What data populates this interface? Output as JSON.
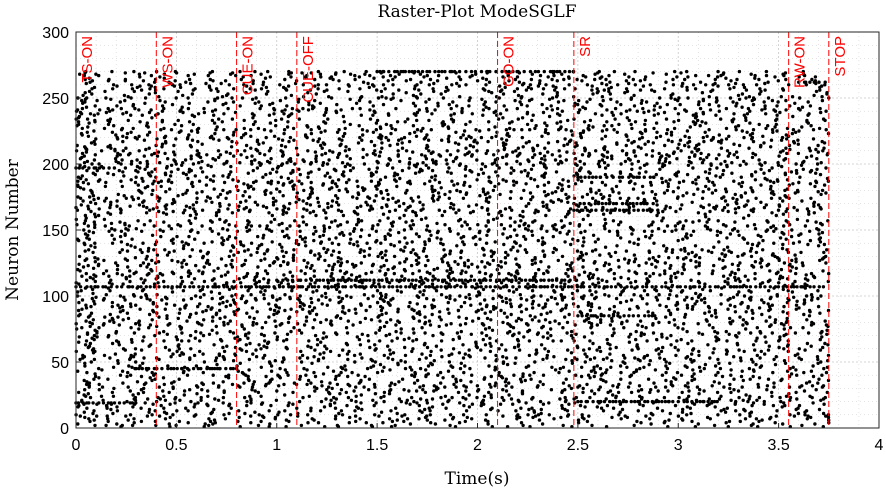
{
  "chart_data": {
    "type": "scatter",
    "title": "Raster-Plot ModeSGLF",
    "xlabel": "Time(s)",
    "ylabel": "Neuron Number",
    "xlim": [
      0,
      4
    ],
    "ylim": [
      0,
      300
    ],
    "xticks": [
      0,
      0.5,
      1,
      1.5,
      2,
      2.5,
      3,
      3.5,
      4
    ],
    "xtick_labels": [
      "0",
      "0.5",
      "1",
      "1.5",
      "2",
      "2.5",
      "3",
      "3.5",
      "4"
    ],
    "yticks": [
      0,
      50,
      100,
      150,
      200,
      250,
      300
    ],
    "ytick_labels": [
      "0",
      "50",
      "100",
      "150",
      "200",
      "250",
      "300"
    ],
    "grid": true,
    "grid_style": "dotted",
    "marker_color": "#000000",
    "event_color": "#ff0000",
    "events": [
      {
        "label": "TS-ON",
        "x": 0.0
      },
      {
        "label": "WS-ON",
        "x": 0.4
      },
      {
        "label": "CUE-ON",
        "x": 0.8
      },
      {
        "label": "CUE-OFF",
        "x": 1.1
      },
      {
        "label": "GO-ON",
        "x": 2.1
      },
      {
        "label": "SR",
        "x": 2.48
      },
      {
        "label": "RW-ON",
        "x": 3.55
      },
      {
        "label": "STOP",
        "x": 3.75
      }
    ],
    "neuron_range": [
      1,
      270
    ],
    "spike_time_range": [
      0,
      3.75
    ],
    "dense_rows": [
      {
        "neuron": 19,
        "start": 0.0,
        "end": 0.3
      },
      {
        "neuron": 45,
        "start": 0.3,
        "end": 0.8
      },
      {
        "neuron": 107,
        "start": 0.0,
        "end": 3.75
      },
      {
        "neuron": 112,
        "start": 1.0,
        "end": 2.5
      },
      {
        "neuron": 165,
        "start": 2.48,
        "end": 2.9
      },
      {
        "neuron": 170,
        "start": 2.48,
        "end": 2.9
      },
      {
        "neuron": 20,
        "start": 2.5,
        "end": 3.2
      },
      {
        "neuron": 85,
        "start": 2.5,
        "end": 2.9
      },
      {
        "neuron": 190,
        "start": 2.5,
        "end": 2.9
      },
      {
        "neuron": 197,
        "start": 0.0,
        "end": 0.2
      },
      {
        "neuron": 262,
        "start": 3.6,
        "end": 3.75
      },
      {
        "neuron": 270,
        "start": 1.5,
        "end": 2.5
      }
    ]
  }
}
